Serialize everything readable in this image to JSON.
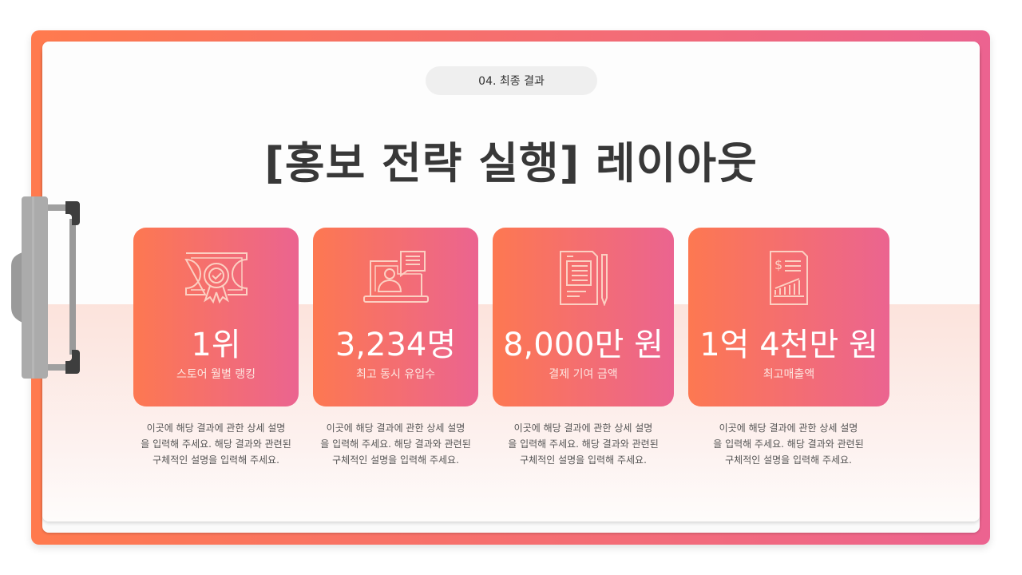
{
  "badge": "04. 최종 결과",
  "title": "[홍보 전략 실행] 레이아웃",
  "colors": {
    "gradient_start": "#fd7851",
    "gradient_end": "#eb6490"
  },
  "cards": [
    {
      "icon": "certificate-icon",
      "value": "1위",
      "label": "스토어 월별 랭킹",
      "desc": [
        "이곳에 해당 결과에 관한 상세 설명",
        "을 입력해 주세요. 해당 결과와 관련된",
        "구체적인 설명을 입력해 주세요."
      ]
    },
    {
      "icon": "laptop-user-chat-icon",
      "value": "3,234명",
      "label": "최고 동시 유입수",
      "desc": [
        "이곳에 해당 결과에 관한 상세 설명",
        "을 입력해 주세요. 해당 결과와 관련된",
        "구체적인 설명을 입력해 주세요."
      ]
    },
    {
      "icon": "document-pen-icon",
      "value": "8,000만 원",
      "label": "결제 기여 금액",
      "desc": [
        "이곳에 해당 결과에 관한 상세 설명",
        "을 입력해 주세요. 해당 결과와 관련된",
        "구체적인 설명을 입력해 주세요."
      ]
    },
    {
      "icon": "financial-report-icon",
      "value": "1억 4천만 원",
      "label": "최고매출액",
      "desc": [
        "이곳에 해당 결과에 관한 상세 설명",
        "을 입력해 주세요. 해당 결과와 관련된",
        "구체적인 설명을 입력해 주세요."
      ]
    }
  ]
}
